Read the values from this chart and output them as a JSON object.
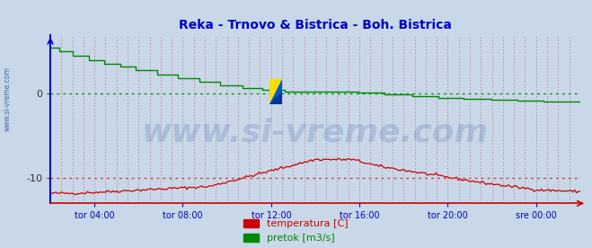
{
  "title": "Reka - Trnovo & Bistrica - Boh. Bistrica",
  "title_color": "#0000cc",
  "title_fontsize": 10,
  "bg_color": "#c8d8e8",
  "plot_bg_color": "#c8d8e8",
  "left_label": "www.si-vreme.com",
  "left_label_color": "#4466aa",
  "watermark": "www.si-vreme.com",
  "watermark_color": "#4466aa",
  "watermark_alpha": 0.22,
  "watermark_fontsize": 26,
  "ylim": [
    -13,
    7
  ],
  "yticks": [
    0,
    -10
  ],
  "grid_color_h": "#cc4444",
  "grid_color_zero": "#009900",
  "xlabel_color": "#0000bb",
  "xtick_labels": [
    "tor 04:00",
    "tor 08:00",
    "tor 12:00",
    "tor 16:00",
    "tor 20:00",
    "sre 00:00"
  ],
  "xtick_positions": [
    0.083,
    0.25,
    0.417,
    0.583,
    0.75,
    0.917
  ],
  "pretok_color": "#008800",
  "temperatura_color": "#cc0000",
  "axis_color_left": "#0000cc",
  "axis_color_bottom": "#cc0000",
  "legend_temperatura": "temperatura [C]",
  "legend_pretok": "pretok [m3/s]",
  "legend_fontsize": 8,
  "n_vgrid": 48
}
